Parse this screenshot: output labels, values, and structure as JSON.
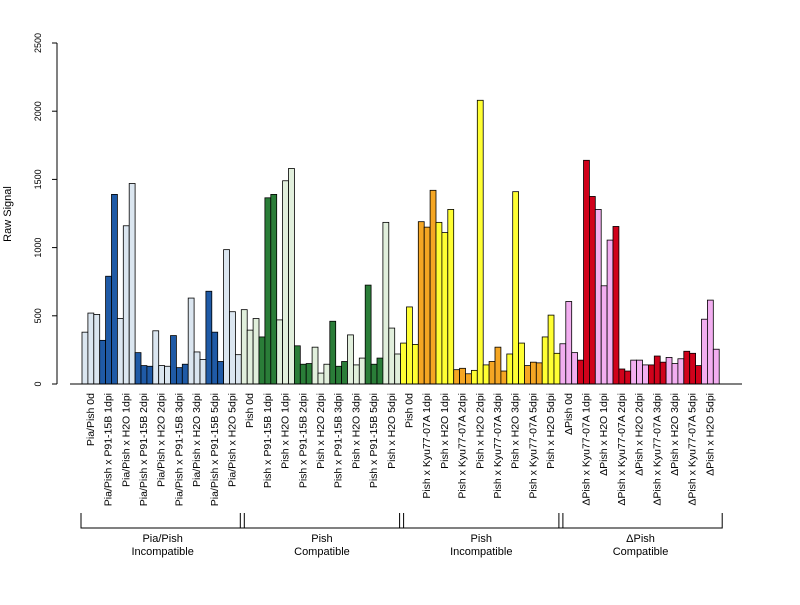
{
  "chart_data": {
    "type": "bar",
    "title": "",
    "ylabel": "Raw Signal",
    "xlabel": "",
    "ylim": [
      0,
      2500
    ],
    "yticks": [
      0,
      500,
      1000,
      1500,
      2000,
      2500
    ],
    "grid": false,
    "legend": "none",
    "groups": [
      {
        "label": [
          "Pia/Pish",
          "Incompatible"
        ],
        "bars": [
          {
            "label": "Pia/Pish 0d",
            "values": [
              380,
              520,
              510
            ],
            "color": "#dbe6f0"
          },
          {
            "label": "Pia/Pish x P91-15B 1dpi",
            "values": [
              320,
              790,
              1390
            ],
            "color": "#1f5aa6"
          },
          {
            "label": "Pia/Pish x H2O 1dpi",
            "values": [
              480,
              1160,
              1470
            ],
            "color": "#dbe6f0"
          },
          {
            "label": "Pia/Pish x P91-15B 2dpi",
            "values": [
              230,
              135,
              130
            ],
            "color": "#1f5aa6"
          },
          {
            "label": "Pia/Pish x H2O 2dpi",
            "values": [
              390,
              135,
              130
            ],
            "color": "#dbe6f0"
          },
          {
            "label": "Pia/Pish x P91-15B 3dpi",
            "values": [
              355,
              120,
              145
            ],
            "color": "#1f5aa6"
          },
          {
            "label": "Pia/Pish x H2O 3dpi",
            "values": [
              630,
              235,
              180
            ],
            "color": "#dbe6f0"
          },
          {
            "label": "Pia/Pish x P91-15B 5dpi",
            "values": [
              680,
              380,
              165
            ],
            "color": "#1f5aa6"
          },
          {
            "label": "Pia/Pish x H2O 5dpi",
            "values": [
              985,
              530,
              215
            ],
            "color": "#dbe6f0"
          }
        ]
      },
      {
        "label": [
          "Pish",
          "Compatible"
        ],
        "bars": [
          {
            "label": "Pish 0d",
            "values": [
              545,
              395,
              480
            ],
            "color": "#e1efdc"
          },
          {
            "label": "Pish x P91-15B 1dpi",
            "values": [
              345,
              1365,
              1390
            ],
            "color": "#2a7d38"
          },
          {
            "label": "Pish x H2O 1dpi",
            "values": [
              470,
              1490,
              1580
            ],
            "color": "#e1efdc"
          },
          {
            "label": "Pish x P91-15B 2dpi",
            "values": [
              280,
              145,
              150
            ],
            "color": "#2a7d38"
          },
          {
            "label": "Pish x H2O 2dpi",
            "values": [
              270,
              80,
              145
            ],
            "color": "#e1efdc"
          },
          {
            "label": "Pish x P91-15B 3dpi",
            "values": [
              460,
              130,
              165
            ],
            "color": "#2a7d38"
          },
          {
            "label": "Pish x H2O 3dpi",
            "values": [
              360,
              140,
              190
            ],
            "color": "#e1efdc"
          },
          {
            "label": "Pish x P91-15B 5dpi",
            "values": [
              725,
              145,
              190
            ],
            "color": "#2a7d38"
          },
          {
            "label": "Pish x H2O 5dpi",
            "values": [
              1185,
              410,
              220
            ],
            "color": "#e1efdc"
          }
        ]
      },
      {
        "label": [
          "Pish",
          "Incompatible"
        ],
        "bars": [
          {
            "label": "Pish 0d",
            "values": [
              300,
              565,
              290
            ],
            "color": "#ffff33"
          },
          {
            "label": "Pish x Kyu77-07A 1dpi",
            "values": [
              1190,
              1150,
              1420
            ],
            "color": "#f5a623"
          },
          {
            "label": "Pish x H2O 1dpi",
            "values": [
              1185,
              1110,
              1280
            ],
            "color": "#ffff33"
          },
          {
            "label": "Pish x Kyu77-07A 2dpi",
            "values": [
              105,
              115,
              75
            ],
            "color": "#f5a623"
          },
          {
            "label": "Pish x H2O 2dpi",
            "values": [
              100,
              2080,
              140
            ],
            "color": "#ffff33"
          },
          {
            "label": "Pish x Kyu77-07A 3dpi",
            "values": [
              165,
              270,
              95
            ],
            "color": "#f5a623"
          },
          {
            "label": "Pish x H2O 3dpi",
            "values": [
              220,
              1410,
              300
            ],
            "color": "#ffff33"
          },
          {
            "label": "Pish x Kyu77-07A 5dpi",
            "values": [
              135,
              160,
              155
            ],
            "color": "#f5a623"
          },
          {
            "label": "Pish x H2O 5dpi",
            "values": [
              345,
              505,
              225
            ],
            "color": "#ffff33"
          }
        ]
      },
      {
        "label": [
          "ΔPish",
          "Compatible"
        ],
        "bars": [
          {
            "label": "ΔPish 0d",
            "values": [
              295,
              605,
              230
            ],
            "color": "#f2aef0"
          },
          {
            "label": "ΔPish x Kyu77-07A 1dpi",
            "values": [
              175,
              1640,
              1375
            ],
            "color": "#d0021b"
          },
          {
            "label": "ΔPish x H2O 1dpi",
            "values": [
              1280,
              720,
              1055
            ],
            "color": "#f2aef0"
          },
          {
            "label": "ΔPish x Kyu77-07A 2dpi",
            "values": [
              1155,
              110,
              95
            ],
            "color": "#d0021b"
          },
          {
            "label": "ΔPish x H2O 2dpi",
            "values": [
              175,
              175,
              140
            ],
            "color": "#f2aef0"
          },
          {
            "label": "ΔPish x Kyu77-07A 3dpi",
            "values": [
              140,
              205,
              160
            ],
            "color": "#d0021b"
          },
          {
            "label": "ΔPish x H2O 3dpi",
            "values": [
              195,
              150,
              185
            ],
            "color": "#f2aef0"
          },
          {
            "label": "ΔPish x Kyu77-07A 5dpi",
            "values": [
              240,
              225,
              135
            ],
            "color": "#d0021b"
          },
          {
            "label": "ΔPish x H2O 5dpi",
            "values": [
              475,
              615,
              255
            ],
            "color": "#f2aef0"
          }
        ]
      }
    ]
  }
}
